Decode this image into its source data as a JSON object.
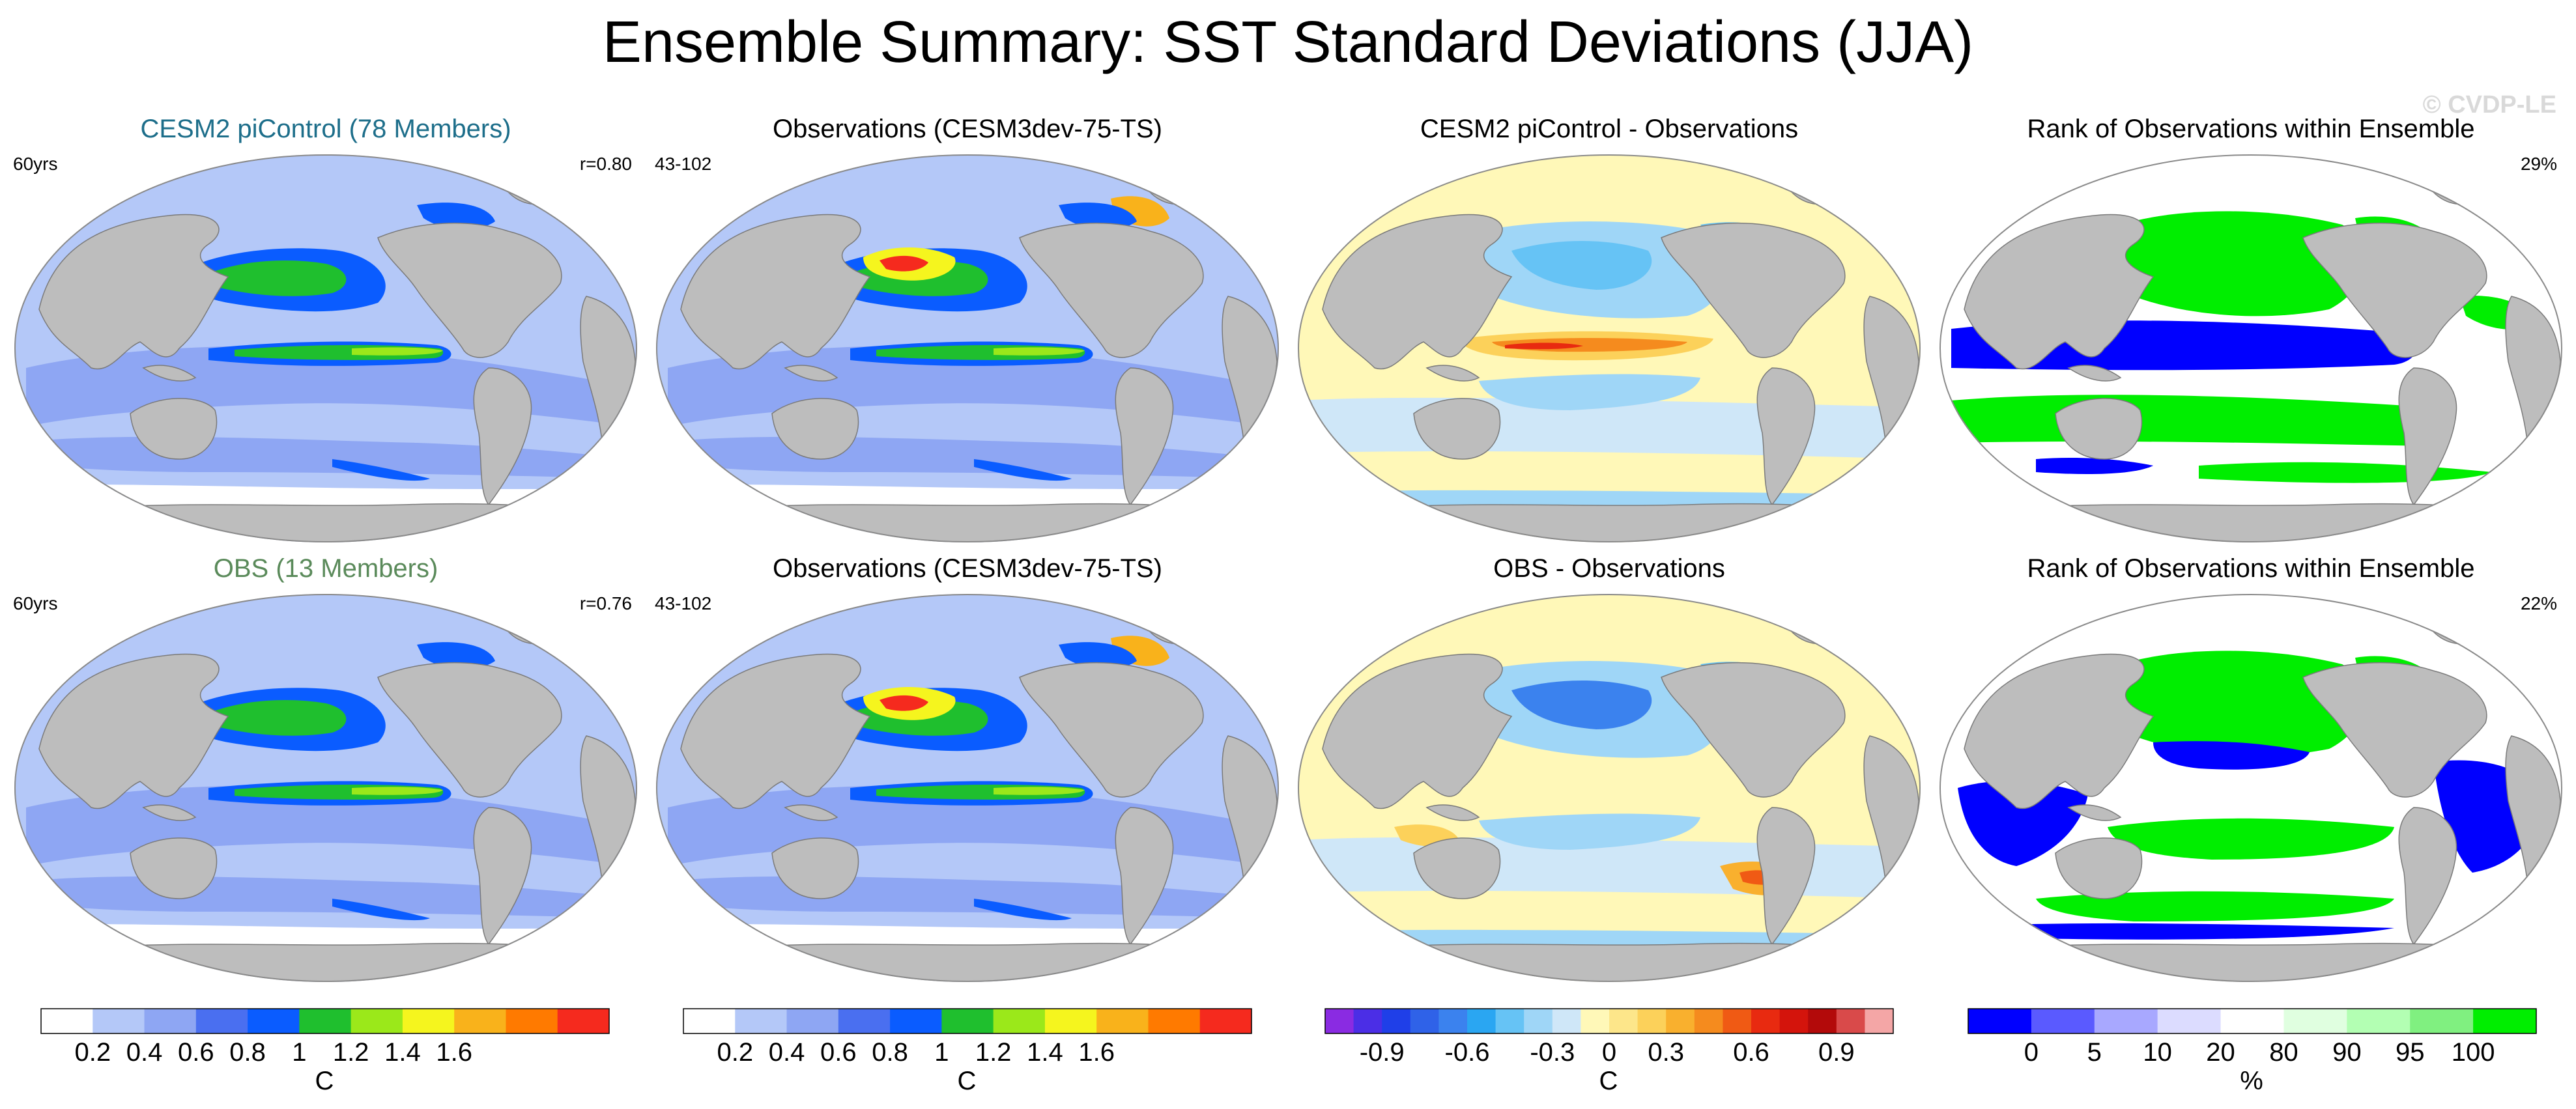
{
  "title": "Ensemble Summary: SST Standard Deviations (JJA)",
  "watermark": "© CVDP-LE",
  "colors": {
    "land": "#bdbdbd",
    "ocean_base": "#b4c8f8",
    "title_blue": "#1d6e8a",
    "title_green": "#5a8a5a"
  },
  "panels": [
    {
      "id": "r1c1",
      "title": "CESM2 piControl (78 Members)",
      "title_color": "#1d6e8a",
      "left": "60yrs",
      "right": "r=0.80",
      "kind": "sd"
    },
    {
      "id": "r1c2",
      "title": "Observations (CESM3dev-75-TS)",
      "title_color": "#000000",
      "left": "43-102",
      "right": "",
      "kind": "sd_obs"
    },
    {
      "id": "r1c3",
      "title": "CESM2 piControl - Observations",
      "title_color": "#000000",
      "left": "",
      "right": "",
      "kind": "diff"
    },
    {
      "id": "r1c4",
      "title": "Rank of Observations within Ensemble",
      "title_color": "#000000",
      "left": "",
      "right": "29%",
      "kind": "rank"
    },
    {
      "id": "r2c1",
      "title": "OBS (13 Members)",
      "title_color": "#5a8a5a",
      "left": "60yrs",
      "right": "r=0.76",
      "kind": "sd"
    },
    {
      "id": "r2c2",
      "title": "Observations (CESM3dev-75-TS)",
      "title_color": "#000000",
      "left": "43-102",
      "right": "",
      "kind": "sd_obs"
    },
    {
      "id": "r2c3",
      "title": "OBS - Observations",
      "title_color": "#000000",
      "left": "",
      "right": "",
      "kind": "diff2"
    },
    {
      "id": "r2c4",
      "title": "Rank of Observations within Ensemble",
      "title_color": "#000000",
      "left": "",
      "right": "22%",
      "kind": "rank2"
    }
  ],
  "chart_data": [
    {
      "type": "colorbar",
      "name": "sd",
      "unit": "C",
      "colors": [
        "#ffffff",
        "#b4c8f8",
        "#8ea6f3",
        "#4a6ff0",
        "#0a5cff",
        "#1fbf2e",
        "#9be81a",
        "#f5f51e",
        "#f9b21b",
        "#ff7a00",
        "#f52a1e"
      ],
      "tick_labels": [
        "0.2",
        "0.4",
        "0.6",
        "0.8",
        "1",
        "1.2",
        "1.4",
        "1.6"
      ]
    },
    {
      "type": "colorbar",
      "name": "sd_obs",
      "unit": "C",
      "colors": [
        "#ffffff",
        "#b4c8f8",
        "#8ea6f3",
        "#4a6ff0",
        "#0a5cff",
        "#1fbf2e",
        "#9be81a",
        "#f5f51e",
        "#f9b21b",
        "#ff7a00",
        "#f52a1e"
      ],
      "tick_labels": [
        "0.2",
        "0.4",
        "0.6",
        "0.8",
        "1",
        "1.2",
        "1.4",
        "1.6"
      ]
    },
    {
      "type": "colorbar",
      "name": "diff",
      "unit": "C",
      "colors": [
        "#8a2be2",
        "#4b2ee6",
        "#1f3fe8",
        "#2f62e8",
        "#3b82ee",
        "#2aa6f2",
        "#66c3f5",
        "#9fd6f7",
        "#cfe7f8",
        "#fff8b8",
        "#fde68a",
        "#fcd15a",
        "#f9b02e",
        "#f58b1e",
        "#f05a14",
        "#e82a10",
        "#d4140c",
        "#b30a0a",
        "#d94a4a",
        "#f4a6a6"
      ],
      "tick_labels": [
        "-0.9",
        "-0.6",
        "-0.3",
        "0",
        "0.3",
        "0.6",
        "0.9"
      ]
    },
    {
      "type": "colorbar",
      "name": "rank",
      "unit": "%",
      "colors": [
        "#0000ff",
        "#5a5aff",
        "#a8a8ff",
        "#dcdcff",
        "#ffffff",
        "#e0ffe0",
        "#b3ffb3",
        "#80f080",
        "#00ee00"
      ],
      "tick_labels": [
        "0",
        "5",
        "10",
        "20",
        "80",
        "90",
        "95",
        "100"
      ]
    }
  ]
}
